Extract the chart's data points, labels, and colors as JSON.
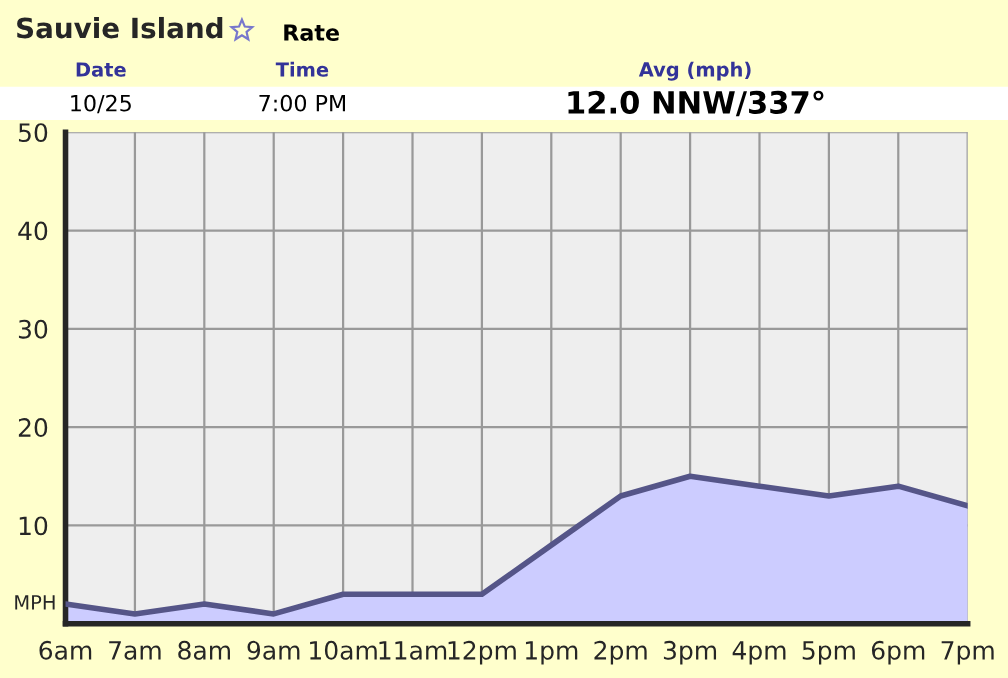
{
  "chart_data": {
    "type": "area",
    "title": "Sauvie Island",
    "ylabel": "MPH",
    "annotations": [
      "Rate",
      "Date",
      "Time",
      "Avg (mph)",
      "10/25",
      "7:00 PM",
      "12.0 NNW/337°"
    ],
    "categories": [
      "6am",
      "7am",
      "8am",
      "9am",
      "10am",
      "11am",
      "12pm",
      "1pm",
      "2pm",
      "3pm",
      "4pm",
      "5pm",
      "6pm",
      "7pm"
    ],
    "series": [
      {
        "color": "#ccccff",
        "values": [
          2,
          1,
          2,
          1,
          3,
          3,
          3,
          8,
          13,
          15,
          14,
          13,
          14,
          12
        ]
      }
    ],
    "ylim": [
      0,
      50
    ],
    "yticks": [
      10,
      20,
      30,
      40,
      50
    ],
    "grid": true,
    "legend": false
  }
}
